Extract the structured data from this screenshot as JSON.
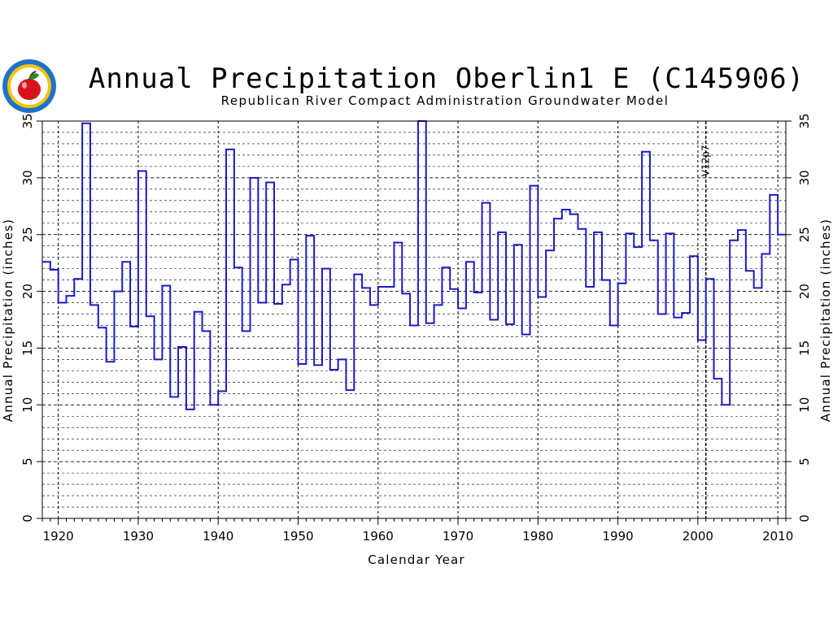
{
  "colors": {
    "series": "#1a1ac8",
    "axis": "#000000",
    "grid": "#000000",
    "logo_outer": "#1e73c8",
    "logo_ring": "#f2c40c",
    "logo_inner": "#e03a12",
    "logo_apple": "#d8121a",
    "logo_leaf": "#2a8a2a"
  },
  "logo": {
    "icon": "rrca-seal-logo"
  },
  "chart_data": {
    "type": "line",
    "title": "Annual Precipitation Oberlin1 E (C145906)",
    "subtitle": "Republican River Compact Administration Groundwater Model",
    "xlabel": "Calendar Year",
    "ylabel_left": "Annual Precipitation (inches)",
    "ylabel_right": "Annual Precipitation (inches)",
    "xlim": [
      1918,
      2011
    ],
    "ylim": [
      0,
      35
    ],
    "xticks": [
      1920,
      1930,
      1940,
      1950,
      1960,
      1970,
      1980,
      1990,
      2000,
      2010
    ],
    "yticks": [
      0,
      5,
      10,
      15,
      20,
      25,
      30,
      35
    ],
    "grid": true,
    "step": true,
    "annotation": {
      "label": "V12p7",
      "x": 2001
    },
    "series": [
      {
        "x": [
          1918,
          1919,
          1920,
          1921,
          1922,
          1923,
          1924,
          1925,
          1926,
          1927,
          1928,
          1929,
          1930,
          1931,
          1932,
          1933,
          1934,
          1935,
          1936,
          1937,
          1938,
          1939,
          1940,
          1941,
          1942,
          1943,
          1944,
          1945,
          1946,
          1947,
          1948,
          1949,
          1950,
          1951,
          1952,
          1953,
          1954,
          1955,
          1956,
          1957,
          1958,
          1959,
          1960,
          1961,
          1962,
          1963,
          1964,
          1965,
          1966,
          1967,
          1968,
          1969,
          1970,
          1971,
          1972,
          1973,
          1974,
          1975,
          1976,
          1977,
          1978,
          1979,
          1980,
          1981,
          1982,
          1983,
          1984,
          1985,
          1986,
          1987,
          1988,
          1989,
          1990,
          1991,
          1992,
          1993,
          1994,
          1995,
          1996,
          1997,
          1998,
          1999,
          2000,
          2001,
          2002,
          2003,
          2004,
          2005,
          2006,
          2007,
          2008,
          2009,
          2010
        ],
        "values": [
          22.6,
          21.9,
          19.0,
          19.6,
          21.1,
          34.8,
          18.8,
          16.8,
          13.8,
          20.0,
          22.6,
          16.9,
          30.6,
          17.8,
          14.0,
          20.5,
          10.7,
          15.1,
          9.6,
          18.2,
          16.5,
          10.0,
          11.2,
          32.5,
          22.1,
          16.5,
          30.0,
          19.0,
          29.6,
          18.9,
          20.6,
          22.8,
          13.6,
          24.9,
          13.5,
          22.0,
          13.1,
          14.0,
          11.3,
          21.5,
          20.3,
          18.8,
          20.4,
          20.4,
          24.3,
          19.8,
          17.0,
          35.0,
          17.2,
          18.8,
          22.1,
          20.2,
          18.5,
          22.6,
          19.9,
          27.8,
          17.5,
          25.2,
          17.1,
          24.1,
          16.2,
          29.3,
          19.5,
          23.6,
          26.4,
          27.2,
          26.8,
          25.5,
          20.4,
          25.2,
          21.0,
          17.0,
          20.7,
          25.1,
          23.9,
          32.3,
          24.5,
          18.0,
          25.1,
          17.7,
          18.1,
          23.1,
          15.7,
          21.1,
          12.3,
          10.0,
          24.5,
          25.4,
          21.8,
          20.3,
          23.3,
          28.5,
          25.0
        ]
      }
    ]
  }
}
